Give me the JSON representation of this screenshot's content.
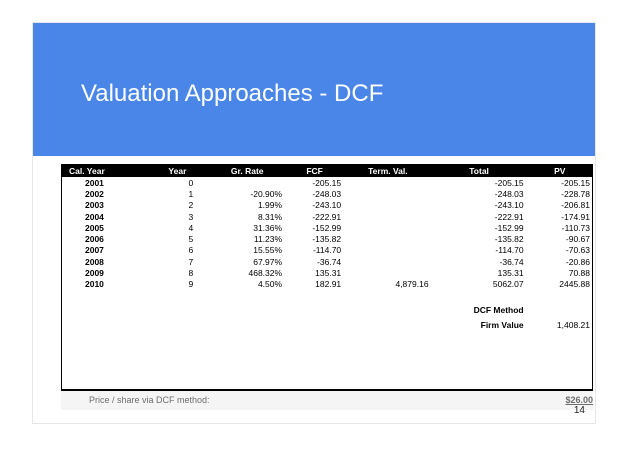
{
  "slide": {
    "title": "Valuation Approaches - DCF",
    "page_number": "14"
  },
  "table": {
    "headers": [
      "Cal. Year",
      "Year",
      "Gr. Rate",
      "FCF",
      "Term. Val.",
      "Total",
      "PV"
    ],
    "rows": [
      [
        "2001",
        "0",
        "",
        "-205.15",
        "",
        "-205.15",
        "-205.15"
      ],
      [
        "2002",
        "1",
        "-20.90%",
        "-248.03",
        "",
        "-248.03",
        "-228.78"
      ],
      [
        "2003",
        "2",
        "1.99%",
        "-243.10",
        "",
        "-243.10",
        "-206.81"
      ],
      [
        "2004",
        "3",
        "8.31%",
        "-222.91",
        "",
        "-222.91",
        "-174.91"
      ],
      [
        "2005",
        "4",
        "31.36%",
        "-152.99",
        "",
        "-152.99",
        "-110.73"
      ],
      [
        "2006",
        "5",
        "11.23%",
        "-135.82",
        "",
        "-135.82",
        "-90.67"
      ],
      [
        "2007",
        "6",
        "15.55%",
        "-114.70",
        "",
        "-114.70",
        "-70.63"
      ],
      [
        "2008",
        "7",
        "67.97%",
        "-36.74",
        "",
        "-36.74",
        "-20.86"
      ],
      [
        "2009",
        "8",
        "468.32%",
        "135.31",
        "",
        "135.31",
        "70.88"
      ],
      [
        "2010",
        "9",
        "4.50%",
        "182.91",
        "4,879.16",
        "5062.07",
        "2445.88"
      ]
    ],
    "dcf_method_label": "DCF Method",
    "firm_value_label": "Firm Value",
    "firm_value": "1,408.21"
  },
  "footer": {
    "caption": "Price / share via DCF method:",
    "price": "$26.00"
  },
  "colors": {
    "banner": "#4a86e8",
    "header_bg": "#000000"
  }
}
